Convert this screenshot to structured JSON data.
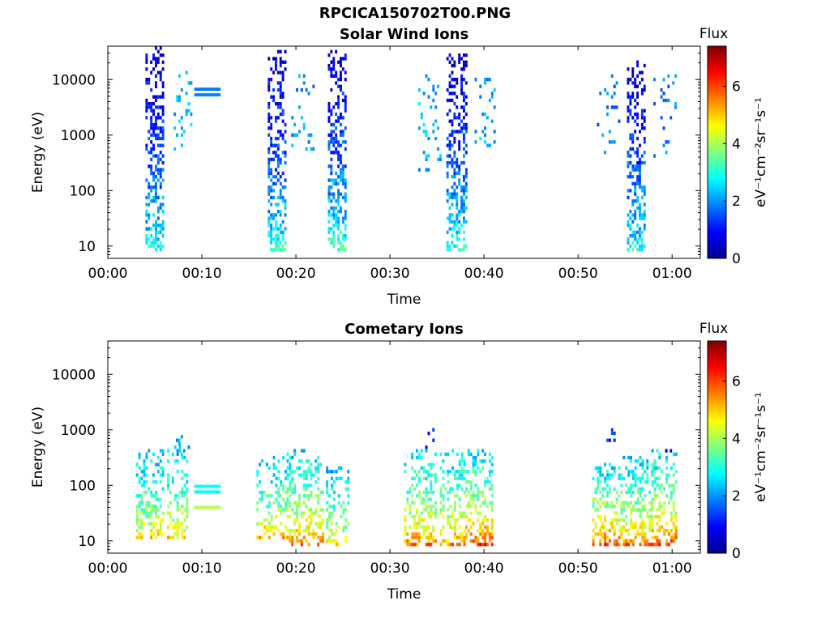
{
  "figure_title": "RPCICA150702T00.PNG",
  "chart_data": [
    {
      "type": "heatmap",
      "title": "Solar Wind Ions",
      "xlabel": "Time",
      "ylabel": "Energy (eV)",
      "x_unit": "minutes",
      "xlim": [
        0,
        63
      ],
      "x_ticks": [
        0,
        10,
        20,
        30,
        40,
        50,
        60
      ],
      "x_tick_labels": [
        "00:00",
        "00:10",
        "00:20",
        "00:30",
        "00:40",
        "00:50",
        "01:00"
      ],
      "y_scale": "log",
      "ylim": [
        6,
        40000
      ],
      "y_ticks": [
        10,
        100,
        1000,
        10000
      ],
      "y_tick_labels": [
        "10",
        "100",
        "1000",
        "10000"
      ],
      "colorbar": {
        "label": "Flux",
        "unit_label": "eV⁻¹cm⁻²sr⁻¹s⁻¹",
        "range": [
          0,
          7.4
        ],
        "ticks": [
          0,
          2,
          4,
          6
        ],
        "tick_labels": [
          "0",
          "2",
          "4",
          "6"
        ],
        "colormap": "jet"
      },
      "bursts": [
        {
          "time_min": 4.0,
          "time_max": 6.0,
          "emin": 8,
          "emax": 35000,
          "flux_high_e": 0.5,
          "flux_low_e": 3.0,
          "density": 0.55
        },
        {
          "time_min": 17.0,
          "time_max": 18.8,
          "emin": 8,
          "emax": 30000,
          "flux_high_e": 0.5,
          "flux_low_e": 3.2,
          "density": 0.55
        },
        {
          "time_min": 23.4,
          "time_max": 25.2,
          "emin": 8,
          "emax": 30000,
          "flux_high_e": 0.5,
          "flux_low_e": 3.4,
          "density": 0.55
        },
        {
          "time_min": 36.0,
          "time_max": 38.2,
          "emin": 8,
          "emax": 30000,
          "flux_high_e": 0.5,
          "flux_low_e": 3.2,
          "density": 0.55
        },
        {
          "time_min": 55.2,
          "time_max": 57.2,
          "emin": 8,
          "emax": 20000,
          "flux_high_e": 0.5,
          "flux_low_e": 3.0,
          "density": 0.55
        }
      ],
      "scatter_regions": [
        {
          "time_min": 7.0,
          "time_max": 9.0,
          "emin": 500,
          "emax": 15000,
          "flux": 2.3,
          "density": 0.12
        },
        {
          "time_min": 19.5,
          "time_max": 22.5,
          "emin": 400,
          "emax": 12000,
          "flux": 2.0,
          "density": 0.1
        },
        {
          "time_min": 33.0,
          "time_max": 35.5,
          "emin": 200,
          "emax": 12000,
          "flux": 2.2,
          "density": 0.12
        },
        {
          "time_min": 39.0,
          "time_max": 41.5,
          "emin": 500,
          "emax": 10000,
          "flux": 2.2,
          "density": 0.1
        },
        {
          "time_min": 52.0,
          "time_max": 54.5,
          "emin": 400,
          "emax": 12000,
          "flux": 1.8,
          "density": 0.1
        },
        {
          "time_min": 58.0,
          "time_max": 60.3,
          "emin": 300,
          "emax": 12000,
          "flux": 1.8,
          "density": 0.1
        }
      ],
      "bands": [
        {
          "time_start": 9.2,
          "time_end": 12.0,
          "energy": 6700,
          "flux": 1.8
        },
        {
          "time_start": 9.2,
          "time_end": 12.0,
          "energy": 5300,
          "flux": 1.9
        }
      ]
    },
    {
      "type": "heatmap",
      "title": "Cometary Ions",
      "xlabel": "Time",
      "ylabel": "Energy (eV)",
      "x_unit": "minutes",
      "xlim": [
        0,
        63
      ],
      "x_ticks": [
        0,
        10,
        20,
        30,
        40,
        50,
        60
      ],
      "x_tick_labels": [
        "00:00",
        "00:10",
        "00:20",
        "00:30",
        "00:40",
        "00:50",
        "01:00"
      ],
      "y_scale": "log",
      "ylim": [
        6,
        40000
      ],
      "y_ticks": [
        10,
        100,
        1000,
        10000
      ],
      "y_tick_labels": [
        "10",
        "100",
        "1000",
        "10000"
      ],
      "colorbar": {
        "label": "Flux",
        "unit_label": "eV⁻¹cm⁻²sr⁻¹s⁻¹",
        "range": [
          0,
          7.4
        ],
        "ticks": [
          0,
          2,
          4,
          6
        ],
        "tick_labels": [
          "0",
          "2",
          "4",
          "6"
        ],
        "colormap": "jet"
      },
      "bursts": [
        {
          "time_min": 3.0,
          "time_max": 5.8,
          "emin": 10,
          "emax": 400,
          "flux_high_e": 2.2,
          "flux_low_e": 5.2,
          "density": 0.5
        },
        {
          "time_min": 6.3,
          "time_max": 8.5,
          "emin": 10,
          "emax": 500,
          "flux_high_e": 2.2,
          "flux_low_e": 5.2,
          "density": 0.5
        },
        {
          "time_min": 15.8,
          "time_max": 19.0,
          "emin": 10,
          "emax": 300,
          "flux_high_e": 2.2,
          "flux_low_e": 5.6,
          "density": 0.5
        },
        {
          "time_min": 19.0,
          "time_max": 22.8,
          "emin": 8,
          "emax": 400,
          "flux_high_e": 2.4,
          "flux_low_e": 5.8,
          "density": 0.5
        },
        {
          "time_min": 23.2,
          "time_max": 25.5,
          "emin": 8,
          "emax": 200,
          "flux_high_e": 2.2,
          "flux_low_e": 5.0,
          "density": 0.5
        },
        {
          "time_min": 31.5,
          "time_max": 35.0,
          "emin": 8,
          "emax": 400,
          "flux_high_e": 2.4,
          "flux_low_e": 5.8,
          "density": 0.5
        },
        {
          "time_min": 35.3,
          "time_max": 38.0,
          "emin": 8,
          "emax": 400,
          "flux_high_e": 2.4,
          "flux_low_e": 5.6,
          "density": 0.5
        },
        {
          "time_min": 38.0,
          "time_max": 41.0,
          "emin": 8,
          "emax": 400,
          "flux_high_e": 2.4,
          "flux_low_e": 6.2,
          "density": 0.5
        },
        {
          "time_min": 51.5,
          "time_max": 54.5,
          "emin": 8,
          "emax": 250,
          "flux_high_e": 2.4,
          "flux_low_e": 6.2,
          "density": 0.5
        },
        {
          "time_min": 54.5,
          "time_max": 57.8,
          "emin": 8,
          "emax": 300,
          "flux_high_e": 2.4,
          "flux_low_e": 5.8,
          "density": 0.5
        },
        {
          "time_min": 57.8,
          "time_max": 60.5,
          "emin": 8,
          "emax": 400,
          "flux_high_e": 2.4,
          "flux_low_e": 6.2,
          "density": 0.5
        }
      ],
      "scatter_regions": [
        {
          "time_min": 7.0,
          "time_max": 9.0,
          "emin": 300,
          "emax": 800,
          "flux": 2.2,
          "density": 0.15
        },
        {
          "time_min": 33.5,
          "time_max": 35.0,
          "emin": 400,
          "emax": 1200,
          "flux": 1.2,
          "density": 0.12
        },
        {
          "time_min": 53.0,
          "time_max": 54.0,
          "emin": 500,
          "emax": 1200,
          "flux": 1.2,
          "density": 0.15
        },
        {
          "time_min": 58.5,
          "time_max": 60.0,
          "emin": 300,
          "emax": 900,
          "flux": 1.2,
          "density": 0.15
        }
      ],
      "bands": [
        {
          "time_start": 9.2,
          "time_end": 12.0,
          "energy": 96,
          "flux": 2.8
        },
        {
          "time_start": 9.2,
          "time_end": 12.0,
          "energy": 76,
          "flux": 2.8
        },
        {
          "time_start": 9.2,
          "time_end": 12.0,
          "energy": 40,
          "flux": 4.1
        }
      ]
    }
  ]
}
